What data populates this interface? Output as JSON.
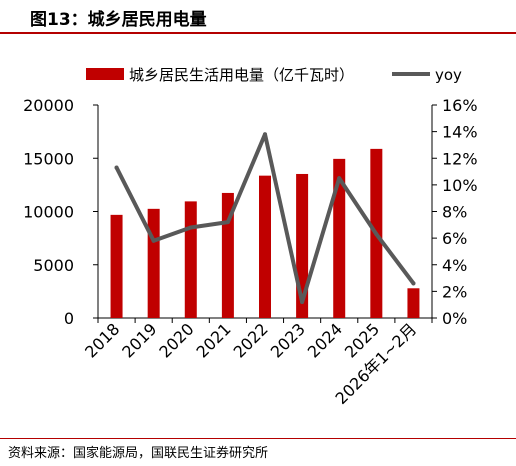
{
  "header": {
    "title": "图13：城乡居民用电量"
  },
  "footer": {
    "source": "资料来源：国家能源局，国联民生证券研究所"
  },
  "colors": {
    "bar": "#c00000",
    "line": "#595959",
    "accent": "#b40000"
  },
  "chart_data": {
    "type": "bar",
    "categories": [
      "2018",
      "2019",
      "2020",
      "2021",
      "2022",
      "2023",
      "2024",
      "2025",
      "2026年1~2月"
    ],
    "series": [
      {
        "name": "城乡居民生活用电量（亿千瓦时）",
        "type": "bar",
        "axis": "left",
        "values": [
          9685,
          10250,
          10950,
          11743,
          13366,
          13524,
          14942,
          15880,
          2790
        ]
      },
      {
        "name": "yoy",
        "type": "line",
        "axis": "right",
        "values": [
          11.3,
          5.8,
          6.8,
          7.2,
          13.8,
          1.2,
          10.5,
          6.3,
          2.6
        ]
      }
    ],
    "y_left": {
      "min": 0,
      "max": 20000,
      "ticks": [
        "0",
        "5000",
        "10000",
        "15000",
        "20000"
      ]
    },
    "y_right": {
      "min": 0,
      "max": 16,
      "ticks": [
        "0%",
        "2%",
        "4%",
        "6%",
        "8%",
        "10%",
        "12%",
        "14%",
        "16%"
      ]
    },
    "legend_position": "top",
    "grid": false
  }
}
